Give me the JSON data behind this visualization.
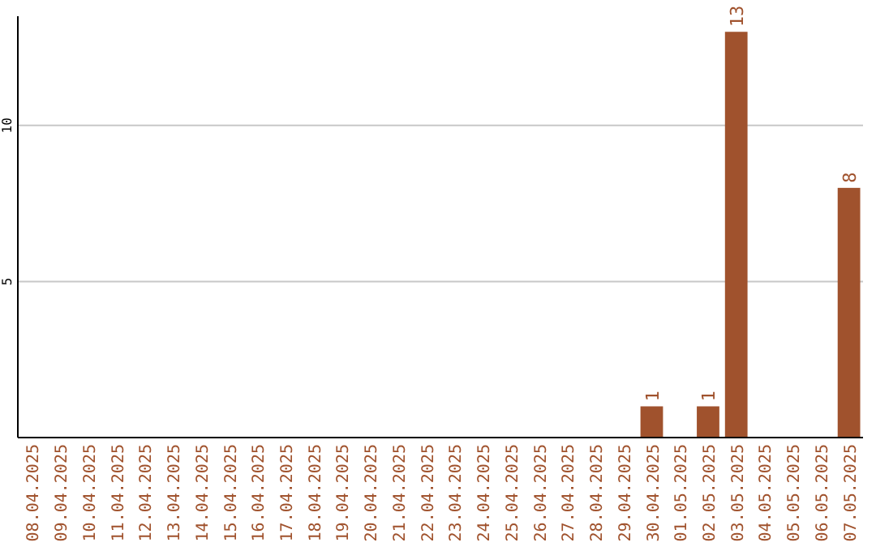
{
  "chart_data": {
    "type": "bar",
    "categories": [
      "08.04.2025",
      "09.04.2025",
      "10.04.2025",
      "11.04.2025",
      "12.04.2025",
      "13.04.2025",
      "14.04.2025",
      "15.04.2025",
      "16.04.2025",
      "17.04.2025",
      "18.04.2025",
      "19.04.2025",
      "20.04.2025",
      "21.04.2025",
      "22.04.2025",
      "23.04.2025",
      "24.04.2025",
      "25.04.2025",
      "26.04.2025",
      "27.04.2025",
      "28.04.2025",
      "29.04.2025",
      "30.04.2025",
      "01.05.2025",
      "02.05.2025",
      "03.05.2025",
      "04.05.2025",
      "05.05.2025",
      "06.05.2025",
      "07.05.2025"
    ],
    "values": [
      0,
      0,
      0,
      0,
      0,
      0,
      0,
      0,
      0,
      0,
      0,
      0,
      0,
      0,
      0,
      0,
      0,
      0,
      0,
      0,
      0,
      0,
      1,
      0,
      1,
      13,
      0,
      0,
      0,
      8
    ],
    "value_labels": [
      null,
      null,
      null,
      null,
      null,
      null,
      null,
      null,
      null,
      null,
      null,
      null,
      null,
      null,
      null,
      null,
      null,
      null,
      null,
      null,
      null,
      null,
      "1",
      null,
      "1",
      "13",
      null,
      null,
      null,
      "8"
    ],
    "color": "#a0522d",
    "ylim": [
      0,
      13.5
    ],
    "yticks": [
      5,
      10
    ],
    "grid": "y"
  }
}
